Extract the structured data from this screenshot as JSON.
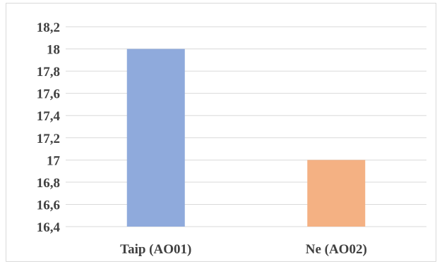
{
  "chart_data": {
    "type": "bar",
    "categories": [
      "Taip (AO01)",
      "Ne (AO02)"
    ],
    "values": [
      18,
      17
    ],
    "colors": [
      "#8faadc",
      "#f4b183"
    ],
    "ylim": [
      16.4,
      18.2
    ],
    "yticks": [
      16.4,
      16.6,
      16.8,
      17,
      17.2,
      17.4,
      17.6,
      17.8,
      18,
      18.2
    ],
    "ytick_labels": [
      "16,4",
      "16,6",
      "16,8",
      "17",
      "17,2",
      "17,4",
      "17,6",
      "17,8",
      "18",
      "18,2"
    ],
    "grid": true,
    "legend": false,
    "title": "",
    "xlabel": "",
    "ylabel": ""
  }
}
